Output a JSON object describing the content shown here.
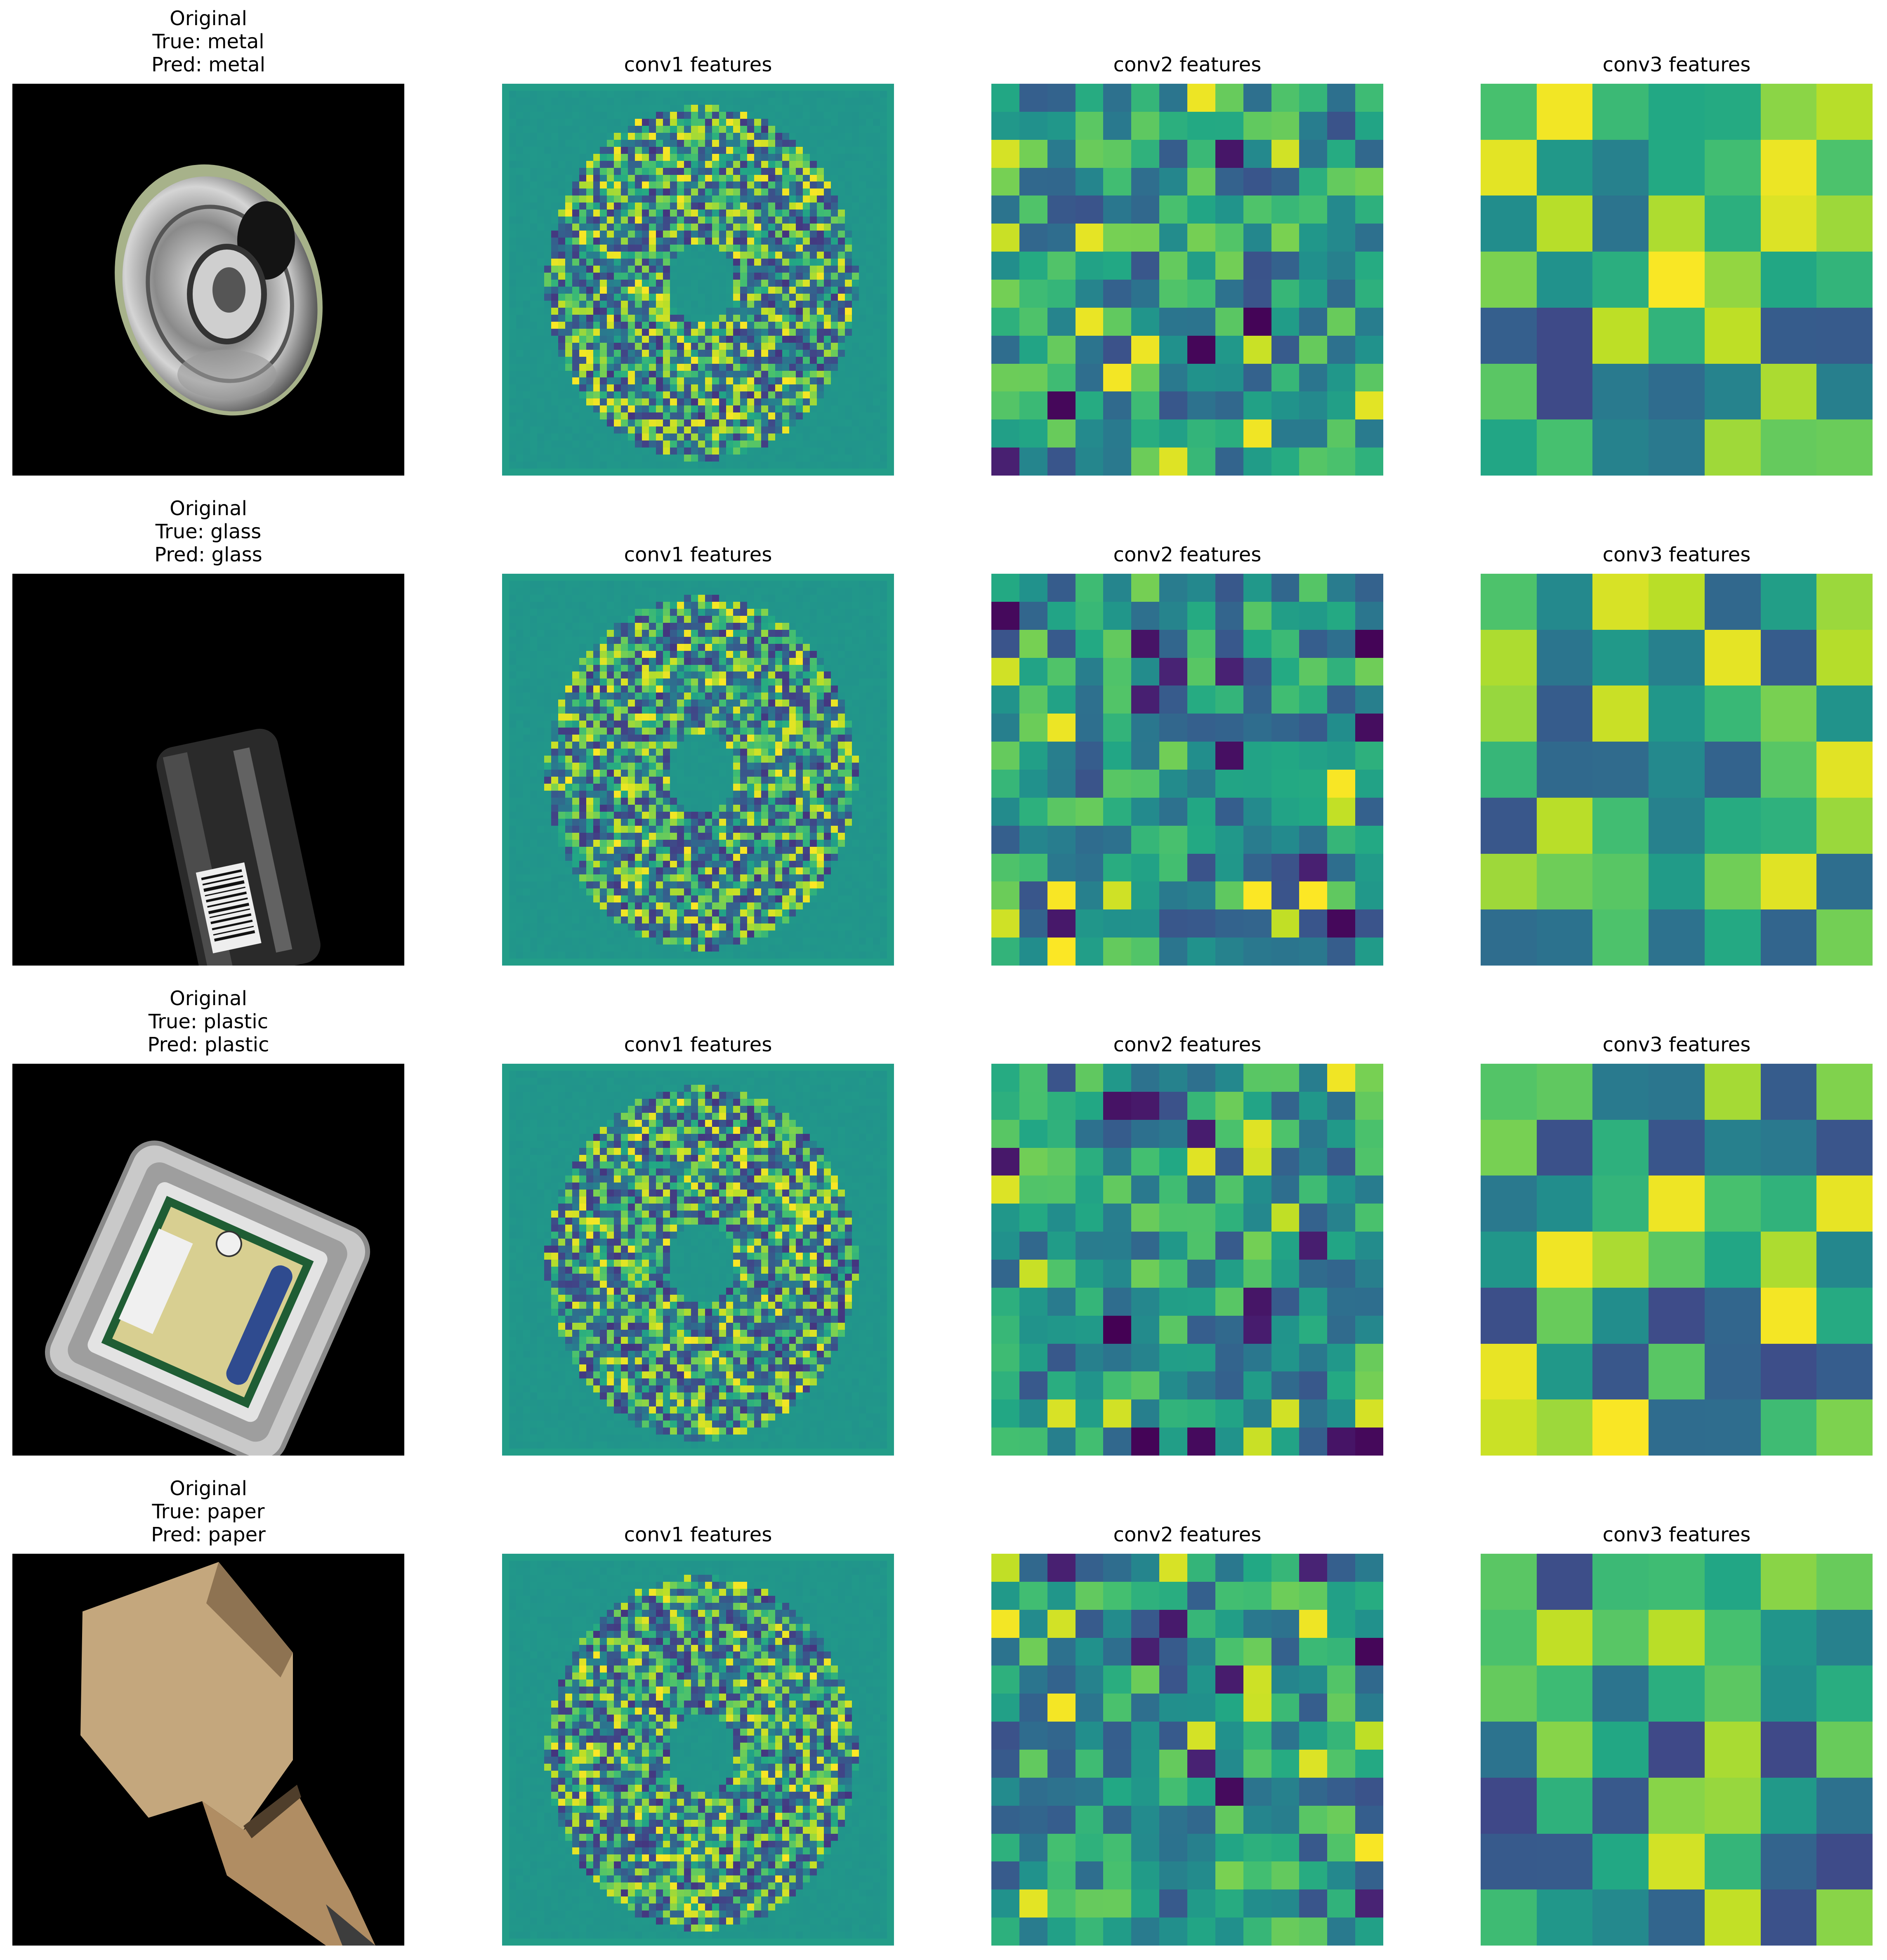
{
  "figure": {
    "rows": [
      {
        "original_title": [
          "Original",
          "True: metal",
          "Pred: metal"
        ],
        "feature_titles": [
          "conv1 features",
          "conv2 features",
          "conv3 features"
        ]
      },
      {
        "original_title": [
          "Original",
          "True: glass",
          "Pred: glass"
        ],
        "feature_titles": [
          "conv1 features",
          "conv2 features",
          "conv3 features"
        ]
      },
      {
        "original_title": [
          "Original",
          "True: plastic",
          "Pred: plastic"
        ],
        "feature_titles": [
          "conv1 features",
          "conv2 features",
          "conv3 features"
        ]
      },
      {
        "original_title": [
          "Original",
          "True: paper",
          "Pred: paper"
        ],
        "feature_titles": [
          "conv1 features",
          "conv2 features",
          "conv3 features"
        ]
      }
    ],
    "colormap": "viridis",
    "colors": {
      "background": "#ffffff",
      "image_background": "#000000",
      "viridis_low": "#440154",
      "viridis_mid": "#21918c",
      "viridis_high": "#fde725"
    }
  }
}
